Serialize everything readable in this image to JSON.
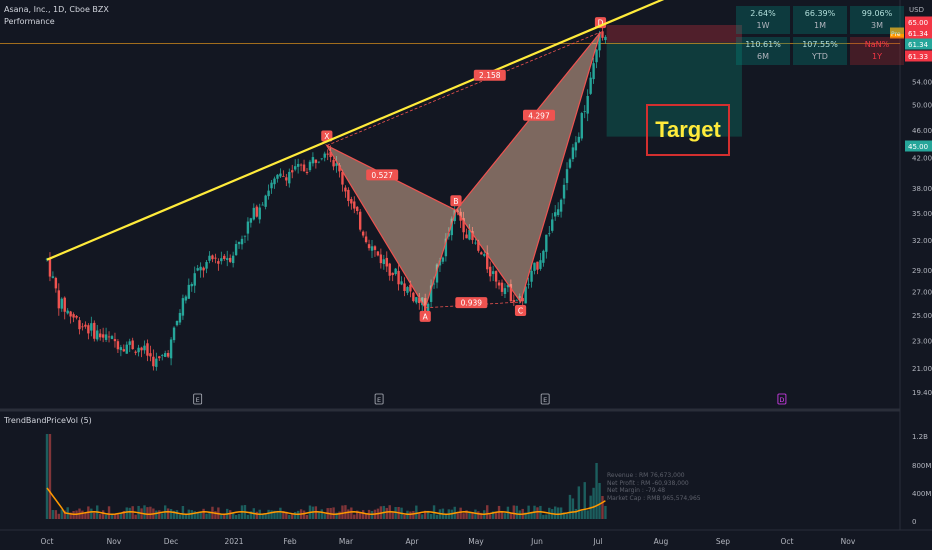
{
  "header": {
    "symbol": "Asana, Inc., 1D, Cboe BZX",
    "performance_label": "Performance"
  },
  "currency": "USD",
  "performance": [
    {
      "value": "2.64%",
      "period": "1W",
      "negative": false
    },
    {
      "value": "66.39%",
      "period": "1M",
      "negative": false
    },
    {
      "value": "99.06%",
      "period": "3M",
      "negative": false
    },
    {
      "value": "110.61%",
      "period": "6M",
      "negative": false
    },
    {
      "value": "107.55%",
      "period": "YTD",
      "negative": false
    },
    {
      "value": "NaN%",
      "period": "1Y",
      "negative": true
    }
  ],
  "target_label": "Target",
  "indicator_label": "TrendBandPriceVol (5)",
  "fundamentals": [
    "Revenue : RM 76,673,000",
    "Net Profit : RM -60,938,000",
    "Net Margin : -79.48",
    "Market Cap : RMB 965,574,965"
  ],
  "chart_data": {
    "type": "candlestick",
    "price_axis": {
      "scale": "log",
      "ticks": [
        "65.00",
        "59.00",
        "54.00",
        "50.00",
        "46.00",
        "42.00",
        "38.00",
        "35.00",
        "32.00",
        "29.00",
        "27.00",
        "25.00",
        "23.00",
        "21.00",
        "19.40"
      ],
      "badges": [
        {
          "label": "65.00",
          "value": 65.0,
          "color": "#f23645"
        },
        {
          "label": "61.34",
          "value": 61.34,
          "color": "#f23645",
          "tag": "Pre"
        },
        {
          "label": "61.34",
          "value": 61.34,
          "color": "#26a69a"
        },
        {
          "label": "61.33",
          "value": 61.33,
          "color": "#f23645"
        },
        {
          "label": "45.00",
          "value": 45.0,
          "color": "#26a69a"
        }
      ]
    },
    "time_axis": [
      "Oct",
      "Nov",
      "Dec",
      "2021",
      "Feb",
      "Mar",
      "Apr",
      "May",
      "Jun",
      "Jul",
      "Aug",
      "Sep",
      "Oct",
      "Nov"
    ],
    "pattern": {
      "name": "XABCD",
      "points": [
        {
          "label": "X",
          "month": 4.55,
          "price": 43.7
        },
        {
          "label": "A",
          "month": 6.15,
          "price": 25.6
        },
        {
          "label": "B",
          "month": 6.65,
          "price": 35.3
        },
        {
          "label": "C",
          "month": 7.7,
          "price": 26.1
        },
        {
          "label": "D",
          "month": 9.0,
          "price": 63.5
        }
      ],
      "ratios": [
        {
          "label": "0.527",
          "month": 5.45,
          "price": 39.6
        },
        {
          "label": "0.939",
          "month": 6.9,
          "price": 26.0
        },
        {
          "label": "4.297",
          "month": 8.0,
          "price": 48.2
        },
        {
          "label": "2.158",
          "month": 7.2,
          "price": 55.0
        }
      ]
    },
    "trendline": {
      "start": {
        "month": 0.0,
        "price": 30.0
      },
      "end": {
        "month": 10.7,
        "price": 75.0
      }
    },
    "position": {
      "entry": 61.34,
      "stop": 65.0,
      "target": 45.0,
      "start_month": 9.1,
      "end_month": 11.3
    },
    "event_markers": [
      {
        "label": "E",
        "month": 2.45
      },
      {
        "label": "E",
        "month": 5.4
      },
      {
        "label": "E",
        "month": 8.1
      },
      {
        "label": "D",
        "month": 11.95
      }
    ],
    "volume_axis": {
      "ticks": [
        "1.2B",
        "800M",
        "400M",
        "0"
      ]
    }
  }
}
